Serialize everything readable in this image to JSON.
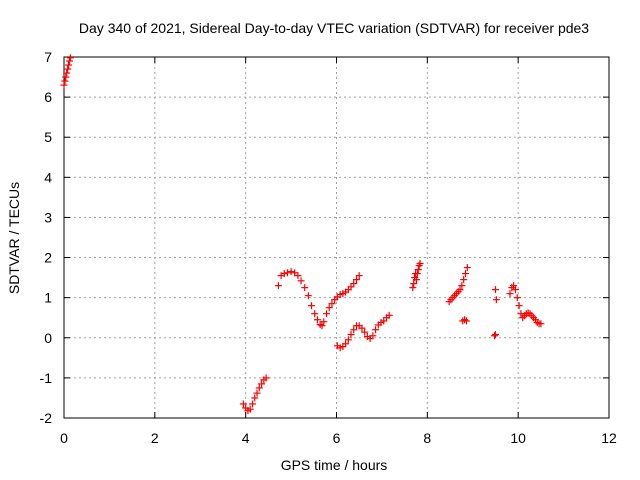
{
  "chart_data": {
    "type": "scatter",
    "title": "Day 340 of 2021, Sidereal Day-to-day VTEC variation (SDTVAR) for receiver pde3",
    "xlabel": "GPS time / hours",
    "ylabel": "SDTVAR / TECUs",
    "xlim": [
      0,
      12
    ],
    "ylim": [
      -2,
      7
    ],
    "x_ticks": [
      "0",
      "2",
      "4",
      "6",
      "8",
      "10",
      "12"
    ],
    "y_ticks": [
      "-2",
      "-1",
      "0",
      "1",
      "2",
      "3",
      "4",
      "5",
      "6",
      "7"
    ],
    "grid": true,
    "marker": "+",
    "color": "#ff0000",
    "segments": [
      {
        "x": [
          0.0,
          0.02,
          0.04,
          0.06,
          0.08,
          0.1,
          0.12,
          0.14
        ],
        "y": [
          6.3,
          6.4,
          6.5,
          6.6,
          6.7,
          6.8,
          6.9,
          6.98
        ]
      },
      {
        "x": [
          3.95,
          4.0,
          4.05,
          4.1,
          4.15,
          4.2,
          4.25,
          4.3,
          4.35,
          4.4,
          4.45
        ],
        "y": [
          -1.65,
          -1.75,
          -1.82,
          -1.78,
          -1.65,
          -1.5,
          -1.38,
          -1.25,
          -1.15,
          -1.05,
          -1.0
        ]
      },
      {
        "x": [
          4.72,
          4.78,
          4.85,
          4.92,
          5.0,
          5.08,
          5.15,
          5.22,
          5.3,
          5.38,
          5.45,
          5.52,
          5.58,
          5.64,
          5.68,
          5.72,
          5.78,
          5.84,
          5.9,
          5.96,
          6.02,
          6.08,
          6.14,
          6.2,
          6.26,
          6.32,
          6.38,
          6.44,
          6.5
        ],
        "y": [
          1.3,
          1.55,
          1.6,
          1.62,
          1.65,
          1.62,
          1.55,
          1.42,
          1.25,
          1.05,
          0.8,
          0.6,
          0.45,
          0.33,
          0.3,
          0.4,
          0.6,
          0.75,
          0.85,
          0.95,
          1.02,
          1.08,
          1.1,
          1.14,
          1.2,
          1.27,
          1.35,
          1.45,
          1.55
        ]
      },
      {
        "x": [
          6.02,
          6.08,
          6.14,
          6.2,
          6.26,
          6.32,
          6.38,
          6.44,
          6.5,
          6.56,
          6.62,
          6.68,
          6.74,
          6.8,
          6.86,
          6.92,
          6.98,
          7.04,
          7.1,
          7.16
        ],
        "y": [
          -0.2,
          -0.25,
          -0.22,
          -0.15,
          -0.05,
          0.08,
          0.2,
          0.3,
          0.3,
          0.24,
          0.14,
          0.03,
          -0.02,
          0.05,
          0.2,
          0.32,
          0.38,
          0.42,
          0.5,
          0.56
        ]
      },
      {
        "x": [
          7.68,
          7.7,
          7.72,
          7.74,
          7.76,
          7.78,
          7.8,
          7.82,
          7.84
        ],
        "y": [
          1.25,
          1.35,
          1.5,
          1.6,
          1.45,
          1.6,
          1.7,
          1.8,
          1.85
        ]
      },
      {
        "x": [
          8.48,
          8.52,
          8.56,
          8.6,
          8.64,
          8.68,
          8.72,
          8.76,
          8.8,
          8.84,
          8.88,
          8.78,
          8.82,
          8.86
        ],
        "y": [
          0.9,
          0.95,
          1.0,
          1.05,
          1.1,
          1.15,
          1.2,
          1.3,
          1.45,
          1.6,
          1.75,
          0.42,
          0.45,
          0.42
        ]
      },
      {
        "x": [
          9.48,
          9.5,
          9.5,
          9.52
        ],
        "y": [
          0.05,
          0.08,
          1.2,
          0.95
        ]
      },
      {
        "x": [
          9.82,
          9.86,
          9.9,
          9.94,
          9.98,
          10.02,
          10.06,
          10.1,
          10.14,
          10.18,
          10.22,
          10.26,
          10.3,
          10.34,
          10.38,
          10.42,
          10.46,
          10.5
        ],
        "y": [
          1.1,
          1.25,
          1.3,
          1.2,
          1.0,
          0.8,
          0.6,
          0.5,
          0.55,
          0.6,
          0.62,
          0.6,
          0.55,
          0.5,
          0.45,
          0.38,
          0.35,
          0.35
        ]
      }
    ]
  }
}
